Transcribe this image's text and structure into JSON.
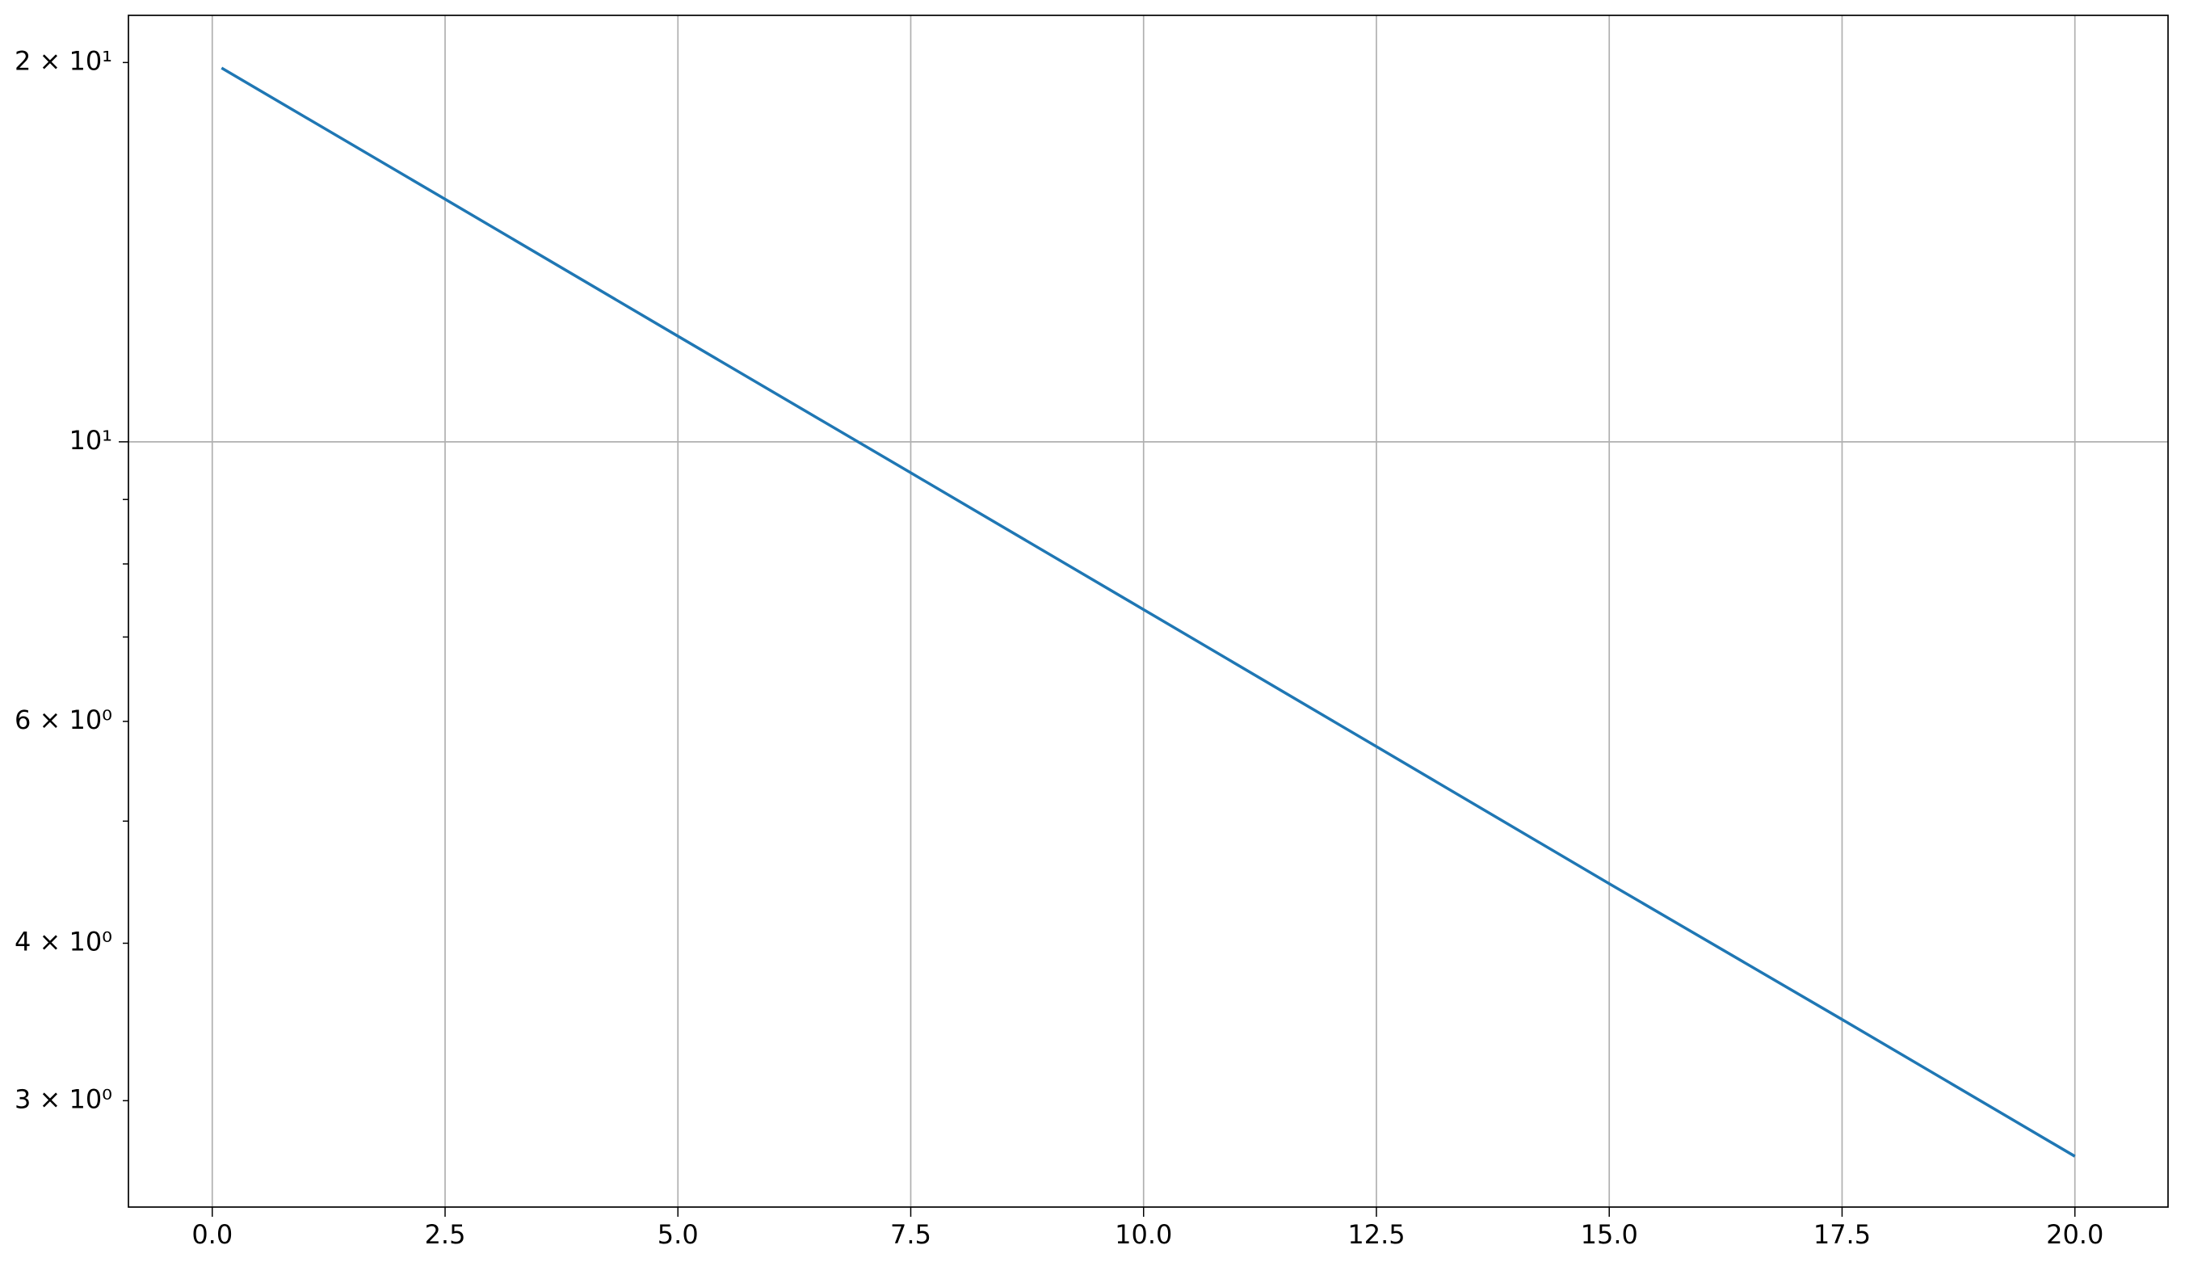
{
  "chart_data": {
    "type": "line",
    "x": [
      0.1,
      2.5,
      5,
      7.5,
      10,
      12.5,
      15,
      17.5,
      20
    ],
    "series": [
      {
        "name": "y",
        "color": "#1f77b4",
        "values": [
          19.8,
          15.58,
          12.13,
          9.45,
          7.36,
          5.73,
          4.46,
          3.48,
          2.71
        ]
      }
    ],
    "xlim": [
      -0.9,
      21.0
    ],
    "xticks": [
      {
        "value": 0,
        "label": "0.0"
      },
      {
        "value": 2.5,
        "label": "2.5"
      },
      {
        "value": 5,
        "label": "5.0"
      },
      {
        "value": 7.5,
        "label": "7.5"
      },
      {
        "value": 10,
        "label": "10.0"
      },
      {
        "value": 12.5,
        "label": "12.5"
      },
      {
        "value": 15,
        "label": "15.0"
      },
      {
        "value": 17.5,
        "label": "17.5"
      },
      {
        "value": 20,
        "label": "20.0"
      }
    ],
    "ylim": [
      2.47,
      21.8
    ],
    "yscale": "log",
    "yticks": [
      {
        "value": 10,
        "label": "10¹"
      }
    ],
    "y_minor_ticks": [
      {
        "value": 3,
        "label": "3 × 10⁰"
      },
      {
        "value": 4,
        "label": "4 × 10⁰"
      },
      {
        "value": 6,
        "label": "6 × 10⁰"
      },
      {
        "value": 20,
        "label": "2 × 10¹"
      }
    ],
    "y_minor_ticks_unlabeled": [
      5,
      7,
      8,
      9
    ],
    "grid": true
  }
}
